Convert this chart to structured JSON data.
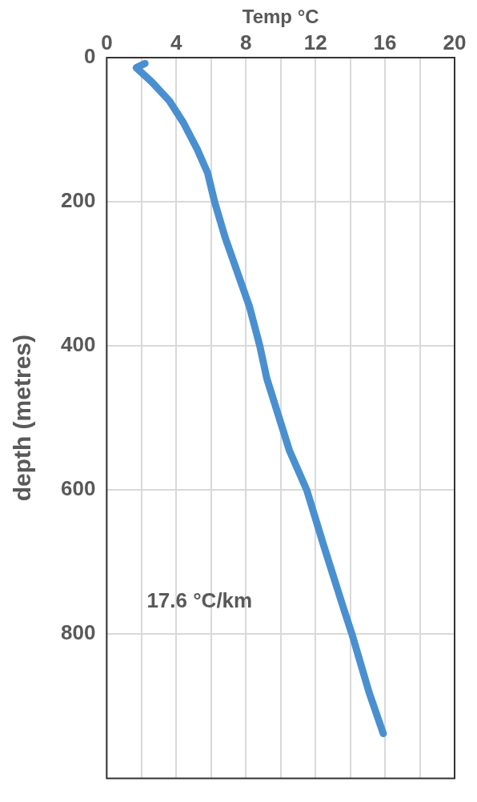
{
  "chart_data": {
    "type": "line",
    "xlabel": "Temp °C",
    "ylabel": "depth (metres)",
    "x": [
      2.2,
      1.7,
      2.6,
      3.6,
      4.4,
      5.2,
      5.8,
      6.2,
      6.8,
      7.5,
      8.2,
      8.8,
      9.2,
      10.5,
      11.5,
      12.5,
      13.6,
      14.1,
      15.1,
      15.9
    ],
    "series": [
      {
        "color": "#4a90d0",
        "values": [
          8,
          14,
          34,
          60,
          90,
          127,
          160,
          200,
          249,
          297,
          345,
          400,
          445,
          545,
          600,
          679,
          763,
          800,
          882,
          938
        ]
      }
    ],
    "xlim": [
      0,
      20
    ],
    "xticks": [
      0,
      {
        "value": 2,
        "label": null
      },
      4,
      {
        "value": 6,
        "label": null
      },
      8,
      {
        "value": 10,
        "label": null
      },
      12,
      {
        "value": 14,
        "label": null
      },
      16,
      {
        "value": 18,
        "label": null
      },
      20
    ],
    "ylim": [
      1000,
      0
    ],
    "yticks": [
      0,
      200,
      400,
      600,
      800
    ],
    "grid": true,
    "legend": false,
    "marker": "none",
    "line_style": "solid",
    "annotations": [
      "17.6 °C/km"
    ]
  }
}
